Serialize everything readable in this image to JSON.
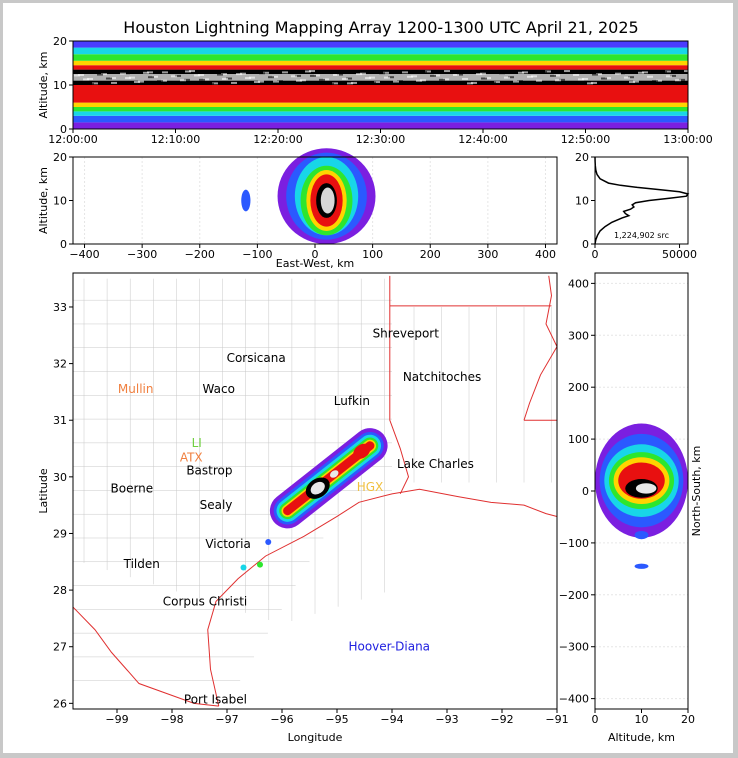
{
  "title": "Houston Lightning Mapping Array 1200-1300 UTC April 21, 2025",
  "colors": {
    "border": "#c8c8c8",
    "state_lines": "#e03030",
    "county_lines": "#c8c8c8",
    "coast": "#e03030",
    "network_label": "#2020e0",
    "station_label": "#f08040"
  },
  "chart_data": [
    {
      "id": "time-altitude",
      "type": "heatmap",
      "ylabel": "Altitude, km",
      "ylim": [
        0,
        20
      ],
      "yticks": [
        "0",
        "10",
        "20"
      ],
      "xticks": [
        "12:00:00",
        "12:10:00",
        "12:20:00",
        "12:30:00",
        "12:40:00",
        "12:50:00",
        "13:00:00"
      ],
      "xlim_minutes": [
        0,
        60
      ],
      "bands": [
        {
          "from": 0,
          "to": 1.5,
          "color": "#7b1fe0"
        },
        {
          "from": 1.5,
          "to": 3,
          "color": "#2b59ff"
        },
        {
          "from": 3,
          "to": 4,
          "color": "#18d6e8"
        },
        {
          "from": 4,
          "to": 5,
          "color": "#2ee62e"
        },
        {
          "from": 5,
          "to": 6,
          "color": "#ffd400"
        },
        {
          "from": 6,
          "to": 10,
          "color": "#e81010"
        },
        {
          "from": 10,
          "to": 11,
          "color": "#000000"
        },
        {
          "from": 11,
          "to": 12.5,
          "color": "#b0b0b0"
        },
        {
          "from": 12.5,
          "to": 13.5,
          "color": "#000000"
        },
        {
          "from": 13.5,
          "to": 14.5,
          "color": "#e81010"
        },
        {
          "from": 14.5,
          "to": 15.5,
          "color": "#ffd400"
        },
        {
          "from": 15.5,
          "to": 17,
          "color": "#2ee62e"
        },
        {
          "from": 17,
          "to": 18.5,
          "color": "#18d6e8"
        },
        {
          "from": 18.5,
          "to": 20,
          "color": "#4a3cff"
        }
      ]
    },
    {
      "id": "ew-altitude",
      "type": "heatmap",
      "xlabel": "East-West, km",
      "ylabel": "Altitude, km",
      "xlim": [
        -420,
        420
      ],
      "ylim": [
        0,
        20
      ],
      "xticks": [
        "−400",
        "−300",
        "−200",
        "−100",
        "0",
        "100",
        "200",
        "300",
        "400"
      ],
      "xtick_values": [
        -400,
        -300,
        -200,
        -100,
        0,
        100,
        200,
        300,
        400
      ],
      "yticks": [
        "0",
        "10",
        "20"
      ],
      "core": {
        "x": 20,
        "z": 10
      },
      "cells": [
        {
          "x": 20,
          "z": 11,
          "rx": 85,
          "rz": 11,
          "color": "#7b1fe0"
        },
        {
          "x": 20,
          "z": 11,
          "rx": 70,
          "rz": 10,
          "color": "#2b59ff"
        },
        {
          "x": 20,
          "z": 11,
          "rx": 55,
          "rz": 9,
          "color": "#18d6e8"
        },
        {
          "x": 20,
          "z": 10,
          "rx": 45,
          "rz": 8,
          "color": "#2ee62e"
        },
        {
          "x": 20,
          "z": 10,
          "rx": 35,
          "rz": 7,
          "color": "#ffd400"
        },
        {
          "x": 20,
          "z": 10,
          "rx": 28,
          "rz": 6,
          "color": "#e81010"
        },
        {
          "x": 20,
          "z": 10,
          "rx": 18,
          "rz": 4,
          "color": "#000000"
        },
        {
          "x": 22,
          "z": 10,
          "rx": 12,
          "rz": 3,
          "color": "#d8d8d8"
        },
        {
          "x": -120,
          "z": 10,
          "rx": 8,
          "rz": 2.5,
          "color": "#2b59ff"
        }
      ]
    },
    {
      "id": "altitude-histogram",
      "type": "line",
      "xlim": [
        0,
        55000
      ],
      "ylim": [
        0,
        20
      ],
      "xticks": [
        "0",
        "50000"
      ],
      "xtick_values": [
        0,
        50000
      ],
      "yticks": [
        "0",
        "10",
        "20"
      ],
      "annotation": "1,224,902 src",
      "altitude": [
        0,
        1,
        2,
        3,
        4,
        5,
        6,
        6.5,
        7,
        7.5,
        8,
        8.5,
        9,
        9.5,
        10,
        10.5,
        11,
        11.5,
        12,
        12.5,
        13,
        13.5,
        14,
        15,
        16,
        17,
        18,
        19,
        20
      ],
      "counts": [
        0,
        500,
        1500,
        3000,
        6000,
        10000,
        16000,
        20000,
        18000,
        17000,
        21000,
        23000,
        22000,
        24000,
        32000,
        44000,
        54000,
        55000,
        50000,
        38000,
        25000,
        15000,
        8000,
        3000,
        1200,
        500,
        200,
        80,
        20
      ]
    },
    {
      "id": "map",
      "type": "scatter",
      "xlabel": "Longitude",
      "ylabel": "Latitude",
      "xlim": [
        -99.8,
        -91
      ],
      "ylim": [
        25.9,
        33.6
      ],
      "xticks": [
        "−99",
        "−98",
        "−97",
        "−96",
        "−95",
        "−94",
        "−93",
        "−92",
        "−91"
      ],
      "xtick_values": [
        -99,
        -98,
        -97,
        -96,
        -95,
        -94,
        -93,
        -92,
        -91
      ],
      "yticks": [
        "26",
        "27",
        "28",
        "29",
        "30",
        "31",
        "32",
        "33"
      ],
      "ytick_values": [
        26,
        27,
        28,
        29,
        30,
        31,
        32,
        33
      ],
      "cities": [
        {
          "name": "Shreveport",
          "lon": -93.75,
          "lat": 32.53
        },
        {
          "name": "Corsicana",
          "lon": -96.47,
          "lat": 32.1
        },
        {
          "name": "Natchitoches",
          "lon": -93.09,
          "lat": 31.76
        },
        {
          "name": "Waco",
          "lon": -97.15,
          "lat": 31.55
        },
        {
          "name": "Lufkin",
          "lon": -94.73,
          "lat": 31.34
        },
        {
          "name": "Bastrop",
          "lon": -97.32,
          "lat": 30.11
        },
        {
          "name": "Lake Charles",
          "lon": -93.21,
          "lat": 30.23
        },
        {
          "name": "Boerne",
          "lon": -98.73,
          "lat": 29.79
        },
        {
          "name": "Sealy",
          "lon": -97.2,
          "lat": 29.5
        },
        {
          "name": "Victoria",
          "lon": -96.98,
          "lat": 28.81
        },
        {
          "name": "Tilden",
          "lon": -98.55,
          "lat": 28.46
        },
        {
          "name": "Corpus Christi",
          "lon": -97.4,
          "lat": 27.8
        },
        {
          "name": "Port Isabel",
          "lon": -97.21,
          "lat": 26.07
        }
      ],
      "stations": [
        {
          "name": "Mullin",
          "lon": -98.66,
          "lat": 31.55,
          "color": "#f08040"
        },
        {
          "name": "ATX",
          "lon": -97.65,
          "lat": 30.34,
          "color": "#f08040"
        },
        {
          "name": "LI",
          "lon": -97.55,
          "lat": 30.6,
          "color": "#70d040"
        },
        {
          "name": "HGX",
          "lon": -94.4,
          "lat": 29.82,
          "color": "#f0c040"
        }
      ],
      "network": {
        "name": "Hoover-Diana",
        "lon": -94.05,
        "lat": 27.0
      },
      "storm": {
        "axis_start": {
          "lon": -95.9,
          "lat": 29.4
        },
        "axis_end": {
          "lon": -94.4,
          "lat": 30.55
        },
        "layers": [
          {
            "color": "#7b1fe0",
            "half_width": 0.32
          },
          {
            "color": "#2b59ff",
            "half_width": 0.25
          },
          {
            "color": "#18d6e8",
            "half_width": 0.2
          },
          {
            "color": "#2ee62e",
            "half_width": 0.15
          },
          {
            "color": "#ffd400",
            "half_width": 0.11
          },
          {
            "color": "#e81010",
            "half_width": 0.08
          }
        ],
        "cores": [
          {
            "lon": -95.35,
            "lat": 29.8,
            "color": "#000000",
            "r": 0.17
          },
          {
            "lon": -95.35,
            "lat": 29.8,
            "color": "#e8e8e8",
            "r": 0.1
          },
          {
            "lon": -94.55,
            "lat": 30.45,
            "color": "#e81010",
            "r": 0.12
          },
          {
            "lon": -95.05,
            "lat": 30.05,
            "color": "#e8e8e8",
            "r": 0.06
          }
        ],
        "spots": [
          {
            "lon": -96.25,
            "lat": 28.85,
            "color": "#2b59ff"
          },
          {
            "lon": -96.4,
            "lat": 28.45,
            "color": "#2ee62e"
          },
          {
            "lon": -96.7,
            "lat": 28.4,
            "color": "#18d6e8"
          }
        ]
      }
    },
    {
      "id": "altitude-ns",
      "type": "heatmap",
      "xlabel": "Altitude, km",
      "ylabel": "North-South, km",
      "xlim": [
        0,
        20
      ],
      "ylim": [
        -420,
        420
      ],
      "xticks": [
        "0",
        "10",
        "20"
      ],
      "xtick_values": [
        0,
        10,
        20
      ],
      "yticks": [
        "−400",
        "−300",
        "−200",
        "−100",
        "0",
        "100",
        "200",
        "300",
        "400"
      ],
      "ytick_values": [
        -400,
        -300,
        -200,
        -100,
        0,
        100,
        200,
        300,
        400
      ],
      "cells": [
        {
          "z": 10,
          "y": 20,
          "rz": 10,
          "ry": 110,
          "color": "#7b1fe0"
        },
        {
          "z": 10,
          "y": 20,
          "rz": 9,
          "ry": 90,
          "color": "#2b59ff"
        },
        {
          "z": 10,
          "y": 20,
          "rz": 8,
          "ry": 70,
          "color": "#18d6e8"
        },
        {
          "z": 10,
          "y": 20,
          "rz": 7,
          "ry": 55,
          "color": "#2ee62e"
        },
        {
          "z": 10,
          "y": 20,
          "rz": 6,
          "ry": 45,
          "color": "#ffd400"
        },
        {
          "z": 10,
          "y": 20,
          "rz": 5,
          "ry": 35,
          "color": "#e81010"
        },
        {
          "z": 10,
          "y": 5,
          "rz": 3.5,
          "ry": 18,
          "color": "#000000"
        },
        {
          "z": 11,
          "y": 5,
          "rz": 2.2,
          "ry": 10,
          "color": "#e8e8e8"
        },
        {
          "z": 10,
          "y": -85,
          "rz": 1.5,
          "ry": 8,
          "color": "#2b59ff"
        },
        {
          "z": 10,
          "y": -145,
          "rz": 1.5,
          "ry": 5,
          "color": "#2b59ff"
        }
      ]
    }
  ]
}
